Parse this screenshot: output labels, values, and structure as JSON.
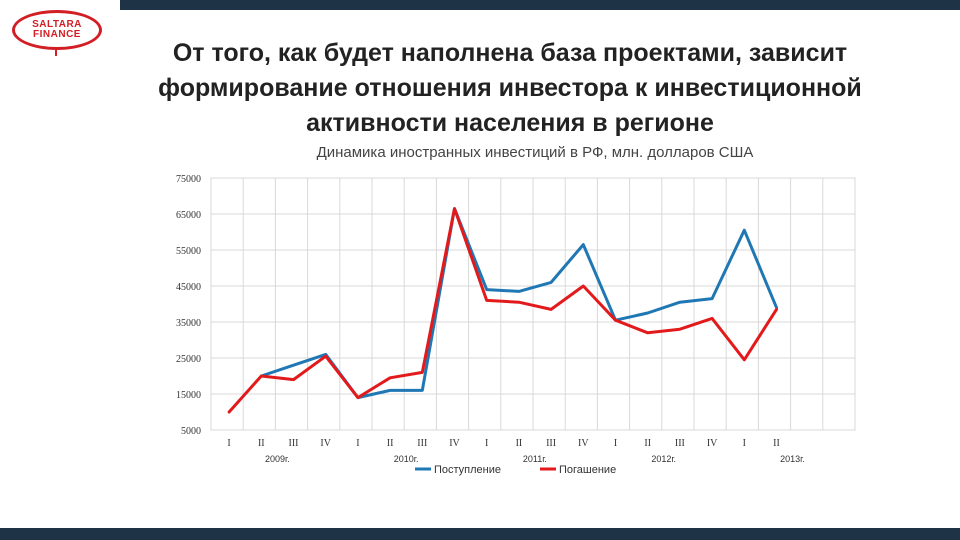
{
  "logo": {
    "line1": "SALTARA",
    "line2": "FINANCE"
  },
  "title_lines": [
    "От того, как будет наполнена база проектами, зависит",
    "формирование отношения инвестора к инвестиционной",
    "активности населения в регионе"
  ],
  "colors": {
    "bars": "#1f3347",
    "brand": "#d21e25",
    "inflow": "#1f77b4",
    "outflow": "#e31a1c",
    "grid": "#d9d9d9"
  },
  "chart_data": {
    "type": "line",
    "title": "Динамика иностранных инвестиций в РФ, млн. долларов США",
    "x": [
      "I",
      "II",
      "III",
      "IV",
      "I",
      "II",
      "III",
      "IV",
      "I",
      "II",
      "III",
      "IV",
      "I",
      "II",
      "III",
      "IV",
      "I",
      "II"
    ],
    "year_labels": [
      {
        "label": "2009г.",
        "at_index": 1
      },
      {
        "label": "2010г.",
        "at_index": 5
      },
      {
        "label": "2011г.",
        "at_index": 9
      },
      {
        "label": "2012г.",
        "at_index": 13
      },
      {
        "label": "2013г.",
        "at_index": 17
      }
    ],
    "yticks": [
      5000,
      15000,
      25000,
      35000,
      45000,
      55000,
      65000,
      75000
    ],
    "ylim": [
      5000,
      75000
    ],
    "grid": true,
    "legend_position": "bottom",
    "series": [
      {
        "name": "Поступление",
        "color": "#1f77b4",
        "values": [
          null,
          20000,
          23000,
          26000,
          14000,
          16000,
          16000,
          66500,
          44000,
          43500,
          46000,
          56500,
          35500,
          37500,
          40500,
          41500,
          60500,
          39000
        ]
      },
      {
        "name": "Погашение",
        "color": "#e31a1c",
        "values": [
          10000,
          20000,
          19000,
          25500,
          14000,
          19500,
          21000,
          66500,
          41000,
          40500,
          38500,
          45000,
          35500,
          32000,
          33000,
          36000,
          24500,
          38500
        ]
      }
    ]
  }
}
